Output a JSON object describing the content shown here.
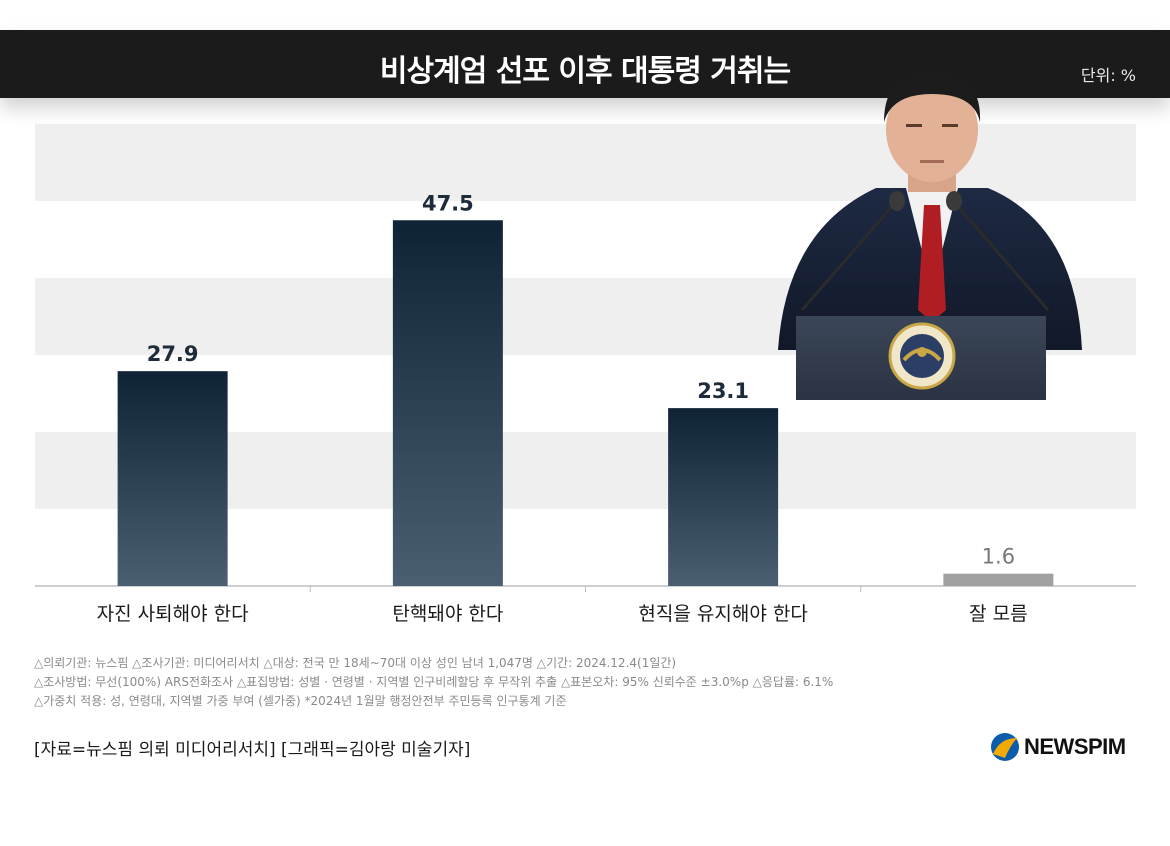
{
  "header": {
    "title": "비상계엄 선포 이후 대통령 거취는",
    "unit": "단위: %"
  },
  "chart_data": {
    "type": "bar",
    "title": "비상계엄 선포 이후 대통령 거취는",
    "unit": "단위: %",
    "categories": [
      "자진 사퇴해야 한다",
      "탄핵돼야 한다",
      "현직을 유지해야 한다",
      "잘 모름"
    ],
    "values": [
      27.9,
      47.5,
      23.1,
      1.6
    ],
    "ylim": [
      0,
      60
    ],
    "grid": "alternating-bands",
    "legend": "none",
    "colors": {
      "bar_top": "#0f2336",
      "bar_bottom": "#4b5f72",
      "bar_muted": "#a0a0a0",
      "band": "#efefef"
    }
  },
  "photo": {
    "seal_icon": "presidential-seal-icon"
  },
  "notes": [
    "△의뢰기관: 뉴스핌  △조사기관: 미디어리서치  △대상: 전국 만 18세~70대 이상 성인 남녀 1,047명  △기간: 2024.12.4(1일간)",
    "△조사방법: 무선(100%) ARS전화조사  △표집방법: 성별 · 연령별 · 지역별 인구비례할당 후 무작위 추출  △표본오차: 95% 신뢰수준 ±3.0%p  △응답률: 6.1%",
    "△가중치 적용: 성, 연령대, 지역별 가중 부여 (셀가중) *2024년 1월말 행정안전부 주민등록 인구통계 기준"
  ],
  "credit": "[자료=뉴스핌 의뢰 미디어리서치] [그래픽=김아랑 미술기자]",
  "logo": {
    "text": "NEWSPIM",
    "icon": "newspim-logo-icon",
    "colors": [
      "#f2a900",
      "#0b5cab"
    ]
  }
}
